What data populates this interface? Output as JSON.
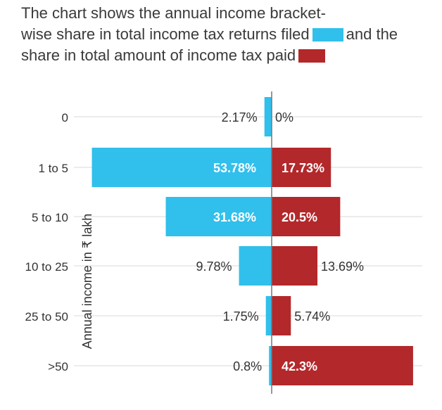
{
  "title": {
    "line1": "The chart shows the annual income bracket-",
    "line2_pre": "wise share in total income tax returns filed",
    "line2_post": "and the",
    "line3": "share in total amount of income tax paid"
  },
  "colors": {
    "returns": "#31bfec",
    "tax": "#b3282b",
    "axis": "#777777",
    "gridline": "#d9d9d9",
    "label_dark": "#333333",
    "label_light": "#ffffff"
  },
  "chart_data": {
    "type": "bar",
    "orientation": "horizontal-diverging",
    "ylabel": "Annual income in ₹ lakh",
    "categories": [
      "0",
      "1 to 5",
      "5 to 10",
      "10 to 25",
      "25 to 50",
      ">50"
    ],
    "series": [
      {
        "key": "returns",
        "values": [
          2.17,
          53.78,
          31.68,
          9.78,
          1.75,
          0.8
        ],
        "labels": [
          "2.17%",
          "53.78%",
          "31.68%",
          "9.78%",
          "1.75%",
          "0.8%"
        ],
        "direction": "left"
      },
      {
        "key": "tax",
        "values": [
          0,
          17.73,
          20.5,
          13.69,
          5.74,
          42.3
        ],
        "labels": [
          "0%",
          "17.73%",
          "20.5%",
          "13.69%",
          "5.74%",
          "42.3%"
        ],
        "direction": "right"
      }
    ],
    "legend": "inline-in-title",
    "grid": true
  }
}
